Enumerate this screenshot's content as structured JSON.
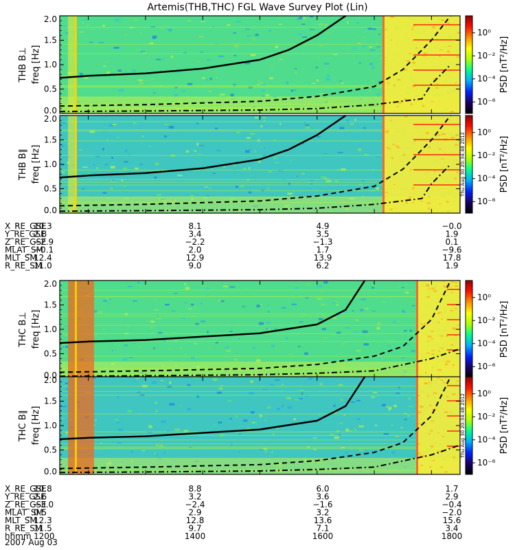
{
  "title": "Artemis(THB,THC) FGL Wave Survey Plot (Lin)",
  "date_label": "2007 Aug 03",
  "stamp": "Thu Aug 30 20:34:48 2012",
  "colorbar": {
    "label": "PSD [nT²/Hz]",
    "scale": "log",
    "tick_labels": [
      "10⁰",
      "10⁻²",
      "10⁻⁴",
      "10⁻⁶"
    ],
    "tick_values": [
      1,
      0.01,
      0.0001,
      1e-06
    ],
    "colors": [
      "#000000",
      "#1a0066",
      "#0022ff",
      "#00b0ff",
      "#00ff90",
      "#b0ff00",
      "#ffff00",
      "#ff9000",
      "#ff1000",
      "#900000"
    ]
  },
  "chart_data": [
    {
      "type": "heatmap",
      "panel": "THB B⊥",
      "ylabel": "freq [Hz]",
      "ylim": [
        0,
        2.0
      ],
      "yticks": [
        "0.0",
        "0.5",
        "1.0",
        "1.5",
        "2.0"
      ],
      "x_range_hhmm": [
        1130,
        1830
      ],
      "curves": [
        {
          "style": "solid",
          "x": [
            1130,
            1200,
            1300,
            1400,
            1500,
            1530,
            1600,
            1630
          ],
          "y": [
            0.73,
            0.77,
            0.82,
            0.92,
            1.1,
            1.3,
            1.6,
            2.0
          ]
        },
        {
          "style": "dashed",
          "x": [
            1130,
            1300,
            1500,
            1600,
            1700,
            1730,
            1800,
            1820
          ],
          "y": [
            0.15,
            0.18,
            0.25,
            0.35,
            0.55,
            0.9,
            1.5,
            2.0
          ]
        },
        {
          "style": "dash-dot",
          "x": [
            1130,
            1300,
            1500,
            1600,
            1700,
            1750,
            1800,
            1820
          ],
          "y": [
            0.04,
            0.05,
            0.07,
            0.1,
            0.18,
            0.3,
            0.6,
            1.0
          ]
        }
      ]
    },
    {
      "type": "heatmap",
      "panel": "THB B∥",
      "ylabel": "freq [Hz]",
      "ylim": [
        0,
        2.0
      ],
      "yticks": [
        "0.0",
        "0.5",
        "1.0",
        "1.5",
        "2.0"
      ],
      "x_range_hhmm": [
        1130,
        1830
      ],
      "curves": [
        {
          "style": "solid",
          "x": [
            1130,
            1200,
            1300,
            1400,
            1500,
            1530,
            1600,
            1630
          ],
          "y": [
            0.73,
            0.77,
            0.82,
            0.92,
            1.1,
            1.3,
            1.6,
            2.0
          ]
        },
        {
          "style": "dashed",
          "x": [
            1130,
            1300,
            1500,
            1600,
            1700,
            1730,
            1800,
            1820
          ],
          "y": [
            0.15,
            0.18,
            0.25,
            0.35,
            0.55,
            0.9,
            1.5,
            2.0
          ]
        },
        {
          "style": "dash-dot",
          "x": [
            1130,
            1300,
            1500,
            1600,
            1700,
            1750,
            1800,
            1820
          ],
          "y": [
            0.04,
            0.05,
            0.07,
            0.1,
            0.18,
            0.3,
            0.6,
            1.0
          ]
        }
      ]
    },
    {
      "type": "heatmap",
      "panel": "THC B⊥",
      "ylabel": "freq [Hz]",
      "ylim": [
        0,
        2.0
      ],
      "yticks": [
        "0.0",
        "0.5",
        "1.0",
        "1.5",
        "2.0"
      ],
      "x_range_hhmm": [
        1130,
        1830
      ],
      "curves": [
        {
          "style": "solid",
          "x": [
            1130,
            1200,
            1300,
            1400,
            1500,
            1600,
            1630,
            1650
          ],
          "y": [
            0.72,
            0.75,
            0.78,
            0.85,
            0.92,
            1.1,
            1.4,
            2.0
          ]
        },
        {
          "style": "dashed",
          "x": [
            1130,
            1300,
            1500,
            1600,
            1700,
            1730,
            1800,
            1820
          ],
          "y": [
            0.12,
            0.15,
            0.2,
            0.28,
            0.45,
            0.65,
            1.2,
            2.0
          ]
        },
        {
          "style": "dash-dot",
          "x": [
            1130,
            1300,
            1500,
            1600,
            1700,
            1800,
            1830
          ],
          "y": [
            0.04,
            0.05,
            0.07,
            0.1,
            0.15,
            0.4,
            0.6
          ]
        }
      ]
    },
    {
      "type": "heatmap",
      "panel": "THC B∥",
      "ylabel": "freq [Hz]",
      "ylim": [
        0,
        2.0
      ],
      "yticks": [
        "0.0",
        "0.5",
        "1.0",
        "1.5",
        "2.0"
      ],
      "x_range_hhmm": [
        1130,
        1830
      ],
      "curves": [
        {
          "style": "solid",
          "x": [
            1130,
            1200,
            1300,
            1400,
            1500,
            1600,
            1630,
            1650
          ],
          "y": [
            0.72,
            0.75,
            0.78,
            0.85,
            0.92,
            1.1,
            1.4,
            2.0
          ]
        },
        {
          "style": "dashed",
          "x": [
            1130,
            1300,
            1500,
            1600,
            1700,
            1730,
            1800,
            1820
          ],
          "y": [
            0.12,
            0.15,
            0.2,
            0.28,
            0.45,
            0.65,
            1.2,
            2.0
          ]
        },
        {
          "style": "dash-dot",
          "x": [
            1130,
            1300,
            1500,
            1600,
            1700,
            1800,
            1830
          ],
          "y": [
            0.04,
            0.05,
            0.07,
            0.1,
            0.15,
            0.4,
            0.6
          ]
        }
      ]
    }
  ],
  "ephemeris": [
    {
      "labels": [
        "X_RE_GSE",
        "Y_RE_GSE",
        "Z_RE_GSE",
        "MLAT_SM",
        "MLT_SM",
        "R_RE_SM"
      ],
      "columns": [
        [
          "10.3",
          "2.8",
          "−2.9",
          "−0.1",
          "12.4",
          "11.0"
        ],
        [
          "8.1",
          "3.4",
          "−2.2",
          "2.0",
          "12.9",
          "9.0"
        ],
        [
          "4.9",
          "3.5",
          "−1.3",
          "1.7",
          "13.9",
          "6.2"
        ],
        [
          "−0.0",
          "1.9",
          "0.1",
          "−9.6",
          "17.8",
          "1.9"
        ]
      ]
    },
    {
      "labels": [
        "X_RE_GSE",
        "Y_RE_GSE",
        "Z_RE_GSE",
        "MLAT_SM",
        "MLT_SM",
        "R_RE_SM",
        "hhmm"
      ],
      "columns": [
        [
          "10.8",
          "2.6",
          "−3.0",
          "0.5",
          "12.3",
          "11.5",
          "1200"
        ],
        [
          "8.8",
          "3.2",
          "−2.4",
          "2.9",
          "12.8",
          "9.7",
          "1400"
        ],
        [
          "6.0",
          "3.6",
          "−1.6",
          "3.2",
          "13.6",
          "7.1",
          "1600"
        ],
        [
          "1.7",
          "2.9",
          "−0.4",
          "−2.0",
          "15.6",
          "3.4",
          "1800"
        ]
      ]
    }
  ]
}
